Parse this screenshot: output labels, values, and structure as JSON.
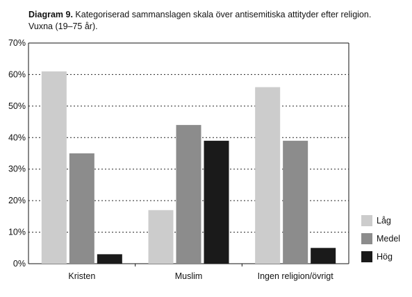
{
  "title_prefix": "Diagram 9.",
  "title_text": "Kategoriserad sammanslagen skala över antisemitiska attityder efter religion. Vuxna (19–75 år).",
  "chart_data": {
    "type": "bar",
    "categories": [
      "Kristen",
      "Muslim",
      "Ingen religion/övrigt"
    ],
    "series": [
      {
        "name": "Låg",
        "values": [
          61,
          17,
          56
        ],
        "color": "#cccccc"
      },
      {
        "name": "Medel",
        "values": [
          35,
          44,
          39
        ],
        "color": "#8c8c8c"
      },
      {
        "name": "Hög",
        "values": [
          3,
          39,
          5
        ],
        "color": "#1a1a1a"
      }
    ],
    "yticks": [
      "0%",
      "10%",
      "20%",
      "30%",
      "40%",
      "50%",
      "60%",
      "70%"
    ],
    "ylim": [
      0,
      70
    ],
    "grid": true,
    "legend_position": "right-bottom",
    "xlabel": "",
    "ylabel": ""
  }
}
